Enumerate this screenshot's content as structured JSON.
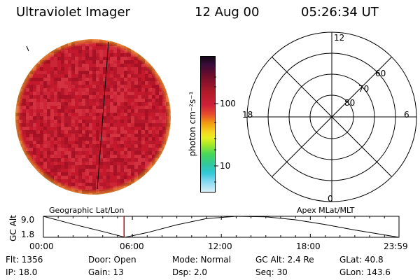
{
  "header": {
    "title": "Ultraviolet Imager",
    "date": "12 Aug 00",
    "time": "05:26:34 UT"
  },
  "colorbar": {
    "unit_label": "photon cm⁻²s⁻¹",
    "ticks": [
      "100",
      "10"
    ]
  },
  "polar_plot": {
    "mlt_labels": [
      "12",
      "18",
      "6",
      "0"
    ],
    "lat_labels": [
      "60",
      "70",
      "80"
    ]
  },
  "timeline": {
    "left_title": "Geographic Lat/Lon",
    "right_title": "Apex MLat/MLT",
    "y_axis_label": "GC Alt",
    "y_ticks": [
      "9.0",
      "1.8"
    ],
    "x_ticks": [
      "00:00",
      "06:00",
      "12:00",
      "18:00",
      "23:59"
    ],
    "marker_color": "#cc0000"
  },
  "chart_data": {
    "type": "line",
    "xlabel": "",
    "ylabel": "GC Alt",
    "ylim": [
      1.8,
      9.0
    ],
    "x_ticks": [
      "00:00",
      "06:00",
      "12:00",
      "18:00",
      "23:59"
    ],
    "x": [
      0,
      2,
      4,
      5.5,
      7,
      9,
      11,
      13,
      15,
      17,
      19,
      21,
      23.98
    ],
    "values": [
      9.0,
      6.3,
      3.8,
      1.8,
      3.4,
      6.1,
      8.2,
      9.0,
      8.8,
      7.8,
      6.2,
      4.3,
      1.8
    ],
    "marker_time": 5.44
  },
  "status": {
    "flt": "Flt: 1356",
    "door": "Door: Open",
    "mode": "Mode: Normal",
    "gc_alt": "GC Alt: 2.4 Re",
    "glat": "GLat:  40.8",
    "ip": "IP: 18.0",
    "gain": "Gain: 13",
    "dsp": "Dsp:     2.0",
    "seq": "Seq: 30",
    "glon": "GLon: 143.6"
  },
  "colors": {
    "image_base": "#c41a2e",
    "image_dark": "#8e0d1c",
    "image_rim": "#e8a020"
  }
}
